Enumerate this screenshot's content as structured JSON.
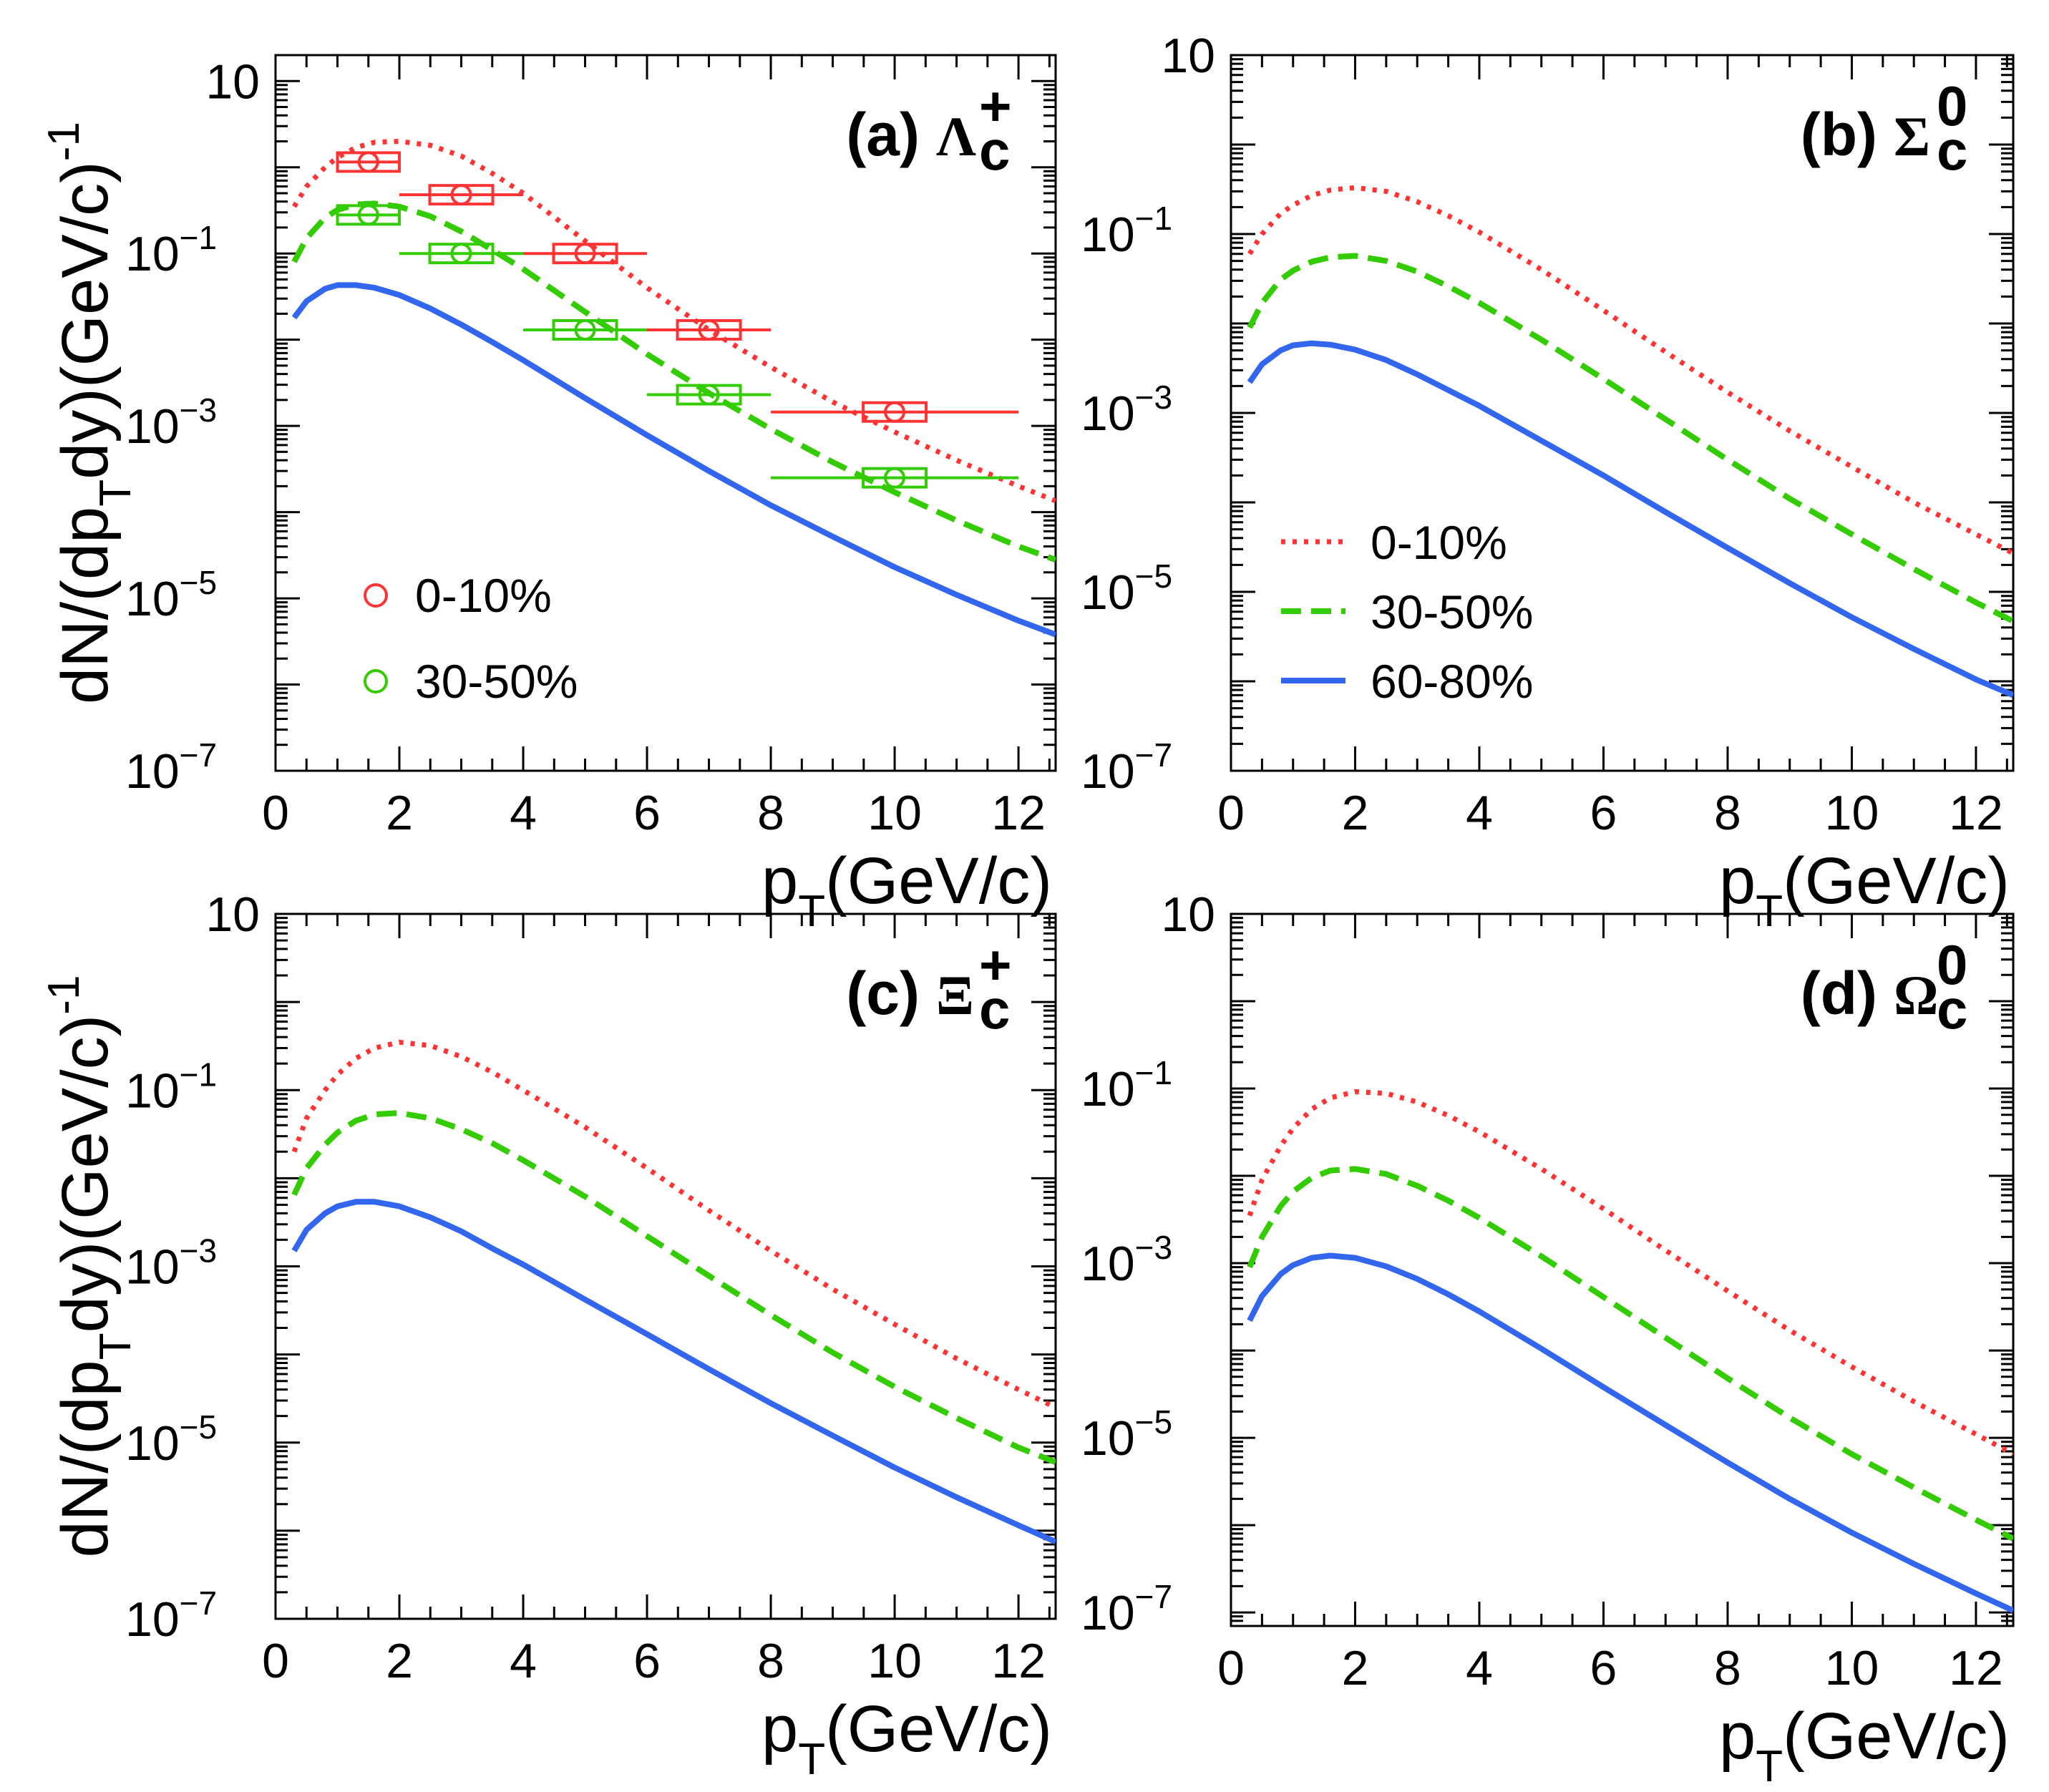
{
  "chart_data": [
    {
      "type": "line",
      "panel_label": "(a)",
      "particle": {
        "symbol": "Λ",
        "subscript": "c",
        "superscript": "+"
      },
      "xlabel": {
        "main": "p",
        "sub": "T",
        "rest": "(GeV/c)"
      },
      "ylabel": {
        "part1": "dN/(dp",
        "sub": "T",
        "part2": "dy)(GeV/c)",
        "sup": "-1"
      },
      "xlim": [
        0,
        12.6
      ],
      "ylim": [
        1e-07,
        20
      ],
      "yscale": "log",
      "xticks": [
        "0",
        "2",
        "4",
        "6",
        "8",
        "10",
        "12"
      ],
      "yticks": [
        {
          "value": 10,
          "label": "10",
          "exp": ""
        },
        {
          "value": 0.1,
          "label": "10",
          "exp": "−1"
        },
        {
          "value": 0.001,
          "label": "10",
          "exp": "−3"
        },
        {
          "value": 1e-05,
          "label": "10",
          "exp": "−5"
        },
        {
          "value": 1e-07,
          "label": "10",
          "exp": "−7"
        }
      ],
      "series": [
        {
          "name": "0-10%",
          "color": "#ff3333",
          "style": "dotted",
          "x": [
            0.3,
            0.5,
            0.8,
            1.0,
            1.3,
            1.6,
            2.0,
            2.5,
            3.0,
            3.5,
            4.0,
            5.0,
            6.0,
            7.0,
            8.0,
            9.0,
            10.0,
            11.0,
            12.0,
            12.6
          ],
          "y": [
            0.35,
            0.6,
            1.0,
            1.3,
            1.7,
            1.95,
            2.0,
            1.8,
            1.35,
            0.85,
            0.5,
            0.14,
            0.04,
            0.013,
            0.0048,
            0.0019,
            0.00085,
            0.0004,
            0.0002,
            0.000135
          ]
        },
        {
          "name": "30-50%",
          "color": "#33cc00",
          "style": "dashed",
          "x": [
            0.3,
            0.5,
            0.8,
            1.0,
            1.3,
            1.6,
            2.0,
            2.5,
            3.0,
            3.5,
            4.0,
            5.0,
            6.0,
            7.0,
            8.0,
            9.0,
            10.0,
            11.0,
            12.0,
            12.6
          ],
          "y": [
            0.08,
            0.15,
            0.26,
            0.32,
            0.37,
            0.38,
            0.35,
            0.27,
            0.18,
            0.11,
            0.066,
            0.021,
            0.0068,
            0.0024,
            0.00092,
            0.00038,
            0.00017,
            8e-05,
            4e-05,
            2.8e-05
          ]
        },
        {
          "name": "60-80%",
          "color": "#3366ee",
          "style": "solid",
          "x": [
            0.3,
            0.5,
            0.8,
            1.0,
            1.3,
            1.6,
            2.0,
            2.5,
            3.0,
            3.5,
            4.0,
            5.0,
            6.0,
            7.0,
            8.0,
            9.0,
            10.0,
            11.0,
            12.0,
            12.6
          ],
          "y": [
            0.018,
            0.028,
            0.039,
            0.043,
            0.043,
            0.04,
            0.033,
            0.023,
            0.015,
            0.0094,
            0.0058,
            0.0021,
            0.00078,
            0.0003,
            0.00012,
            5.2e-05,
            2.3e-05,
            1.1e-05,
            5.5e-06,
            3.8e-06
          ]
        }
      ],
      "points": [
        {
          "name": "0-10%",
          "color": "#ff3333",
          "x": [
            1.5,
            3.0,
            5.0,
            7.0,
            10.0
          ],
          "xerr": [
            0.5,
            1.0,
            1.0,
            1.0,
            2.0
          ],
          "y": [
            1.15,
            0.48,
            0.1,
            0.013,
            0.00145
          ]
        },
        {
          "name": "30-50%",
          "color": "#33cc00",
          "x": [
            1.5,
            3.0,
            5.0,
            7.0,
            10.0
          ],
          "xerr": [
            0.5,
            1.0,
            1.0,
            1.0,
            2.0
          ],
          "y": [
            0.28,
            0.1,
            0.013,
            0.0023,
            0.00025
          ]
        }
      ],
      "legend": {
        "position": "bottom-left",
        "entries": [
          "0-10%",
          "30-50%"
        ]
      }
    },
    {
      "type": "line",
      "panel_label": "(b)",
      "particle": {
        "symbol": "Σ",
        "subscript": "c",
        "superscript": "0"
      },
      "xlabel": {
        "main": "p",
        "sub": "T",
        "rest": "(GeV/c)"
      },
      "xlim": [
        0,
        12.6
      ],
      "ylim": [
        1e-07,
        10
      ],
      "yscale": "log",
      "xticks": [
        "0",
        "2",
        "4",
        "6",
        "8",
        "10",
        "12"
      ],
      "yticks": [
        {
          "value": 10,
          "label": "10",
          "exp": ""
        },
        {
          "value": 0.1,
          "label": "10",
          "exp": "−1"
        },
        {
          "value": 0.001,
          "label": "10",
          "exp": "−3"
        },
        {
          "value": 1e-05,
          "label": "10",
          "exp": "−5"
        },
        {
          "value": 1e-07,
          "label": "10",
          "exp": "−7"
        }
      ],
      "series": [
        {
          "name": "0-10%",
          "color": "#ff3333",
          "style": "dotted",
          "x": [
            0.3,
            0.5,
            0.8,
            1.0,
            1.3,
            1.6,
            2.0,
            2.5,
            3.0,
            3.5,
            4.0,
            5.0,
            6.0,
            7.0,
            8.0,
            9.0,
            10.0,
            11.0,
            12.0,
            12.6
          ],
          "y": [
            0.06,
            0.1,
            0.17,
            0.21,
            0.27,
            0.31,
            0.33,
            0.3,
            0.23,
            0.16,
            0.105,
            0.04,
            0.014,
            0.0048,
            0.0017,
            0.00063,
            0.00025,
            0.0001,
            4.4e-05,
            2.7e-05
          ]
        },
        {
          "name": "30-50%",
          "color": "#33cc00",
          "style": "dashed",
          "x": [
            0.3,
            0.5,
            0.8,
            1.0,
            1.3,
            1.6,
            2.0,
            2.5,
            3.0,
            3.5,
            4.0,
            5.0,
            6.0,
            7.0,
            8.0,
            9.0,
            10.0,
            11.0,
            12.0,
            12.6
          ],
          "y": [
            0.009,
            0.017,
            0.031,
            0.039,
            0.049,
            0.055,
            0.057,
            0.05,
            0.038,
            0.026,
            0.017,
            0.0066,
            0.0024,
            0.00085,
            0.0003,
            0.00011,
            4.4e-05,
            1.8e-05,
            7.6e-06,
            4.7e-06
          ]
        },
        {
          "name": "60-80%",
          "color": "#3366ee",
          "style": "solid",
          "x": [
            0.3,
            0.5,
            0.8,
            1.0,
            1.3,
            1.6,
            2.0,
            2.5,
            3.0,
            3.5,
            4.0,
            5.0,
            6.0,
            7.0,
            8.0,
            9.0,
            10.0,
            11.0,
            12.0,
            12.6
          ],
          "y": [
            0.0022,
            0.0035,
            0.005,
            0.0057,
            0.006,
            0.0058,
            0.0051,
            0.0039,
            0.0027,
            0.0018,
            0.0012,
            0.00049,
            0.0002,
            7.8e-05,
            3.1e-05,
            1.25e-05,
            5.2e-06,
            2.3e-06,
            1.05e-06,
            7e-07
          ]
        }
      ],
      "legend": {
        "position": "bottom-left",
        "entries": [
          "0-10%",
          "30-50%",
          "60-80%"
        ]
      }
    },
    {
      "type": "line",
      "panel_label": "(c)",
      "particle": {
        "symbol": "Ξ",
        "subscript": "c",
        "superscript": "+"
      },
      "xlabel": {
        "main": "p",
        "sub": "T",
        "rest": "(GeV/c)"
      },
      "ylabel": {
        "part1": "dN/(dp",
        "sub": "T",
        "part2": "dy)(GeV/c)",
        "sup": "-1"
      },
      "xlim": [
        0,
        12.6
      ],
      "ylim": [
        1e-07,
        10
      ],
      "yscale": "log",
      "xticks": [
        "0",
        "2",
        "4",
        "6",
        "8",
        "10",
        "12"
      ],
      "yticks": [
        {
          "value": 10,
          "label": "10",
          "exp": ""
        },
        {
          "value": 0.1,
          "label": "10",
          "exp": "−1"
        },
        {
          "value": 0.001,
          "label": "10",
          "exp": "−3"
        },
        {
          "value": 1e-05,
          "label": "10",
          "exp": "−5"
        },
        {
          "value": 1e-07,
          "label": "10",
          "exp": "−7"
        }
      ],
      "series": [
        {
          "name": "0-10%",
          "color": "#ff3333",
          "style": "dotted",
          "x": [
            0.3,
            0.5,
            0.8,
            1.0,
            1.3,
            1.6,
            2.0,
            2.5,
            3.0,
            3.5,
            4.0,
            5.0,
            6.0,
            7.0,
            8.0,
            9.0,
            10.0,
            11.0,
            12.0,
            12.6
          ],
          "y": [
            0.02,
            0.048,
            0.1,
            0.15,
            0.23,
            0.3,
            0.35,
            0.32,
            0.24,
            0.16,
            0.1,
            0.038,
            0.013,
            0.0043,
            0.0015,
            0.00055,
            0.00022,
            9e-05,
            4e-05,
            2.5e-05
          ]
        },
        {
          "name": "30-50%",
          "color": "#33cc00",
          "style": "dashed",
          "x": [
            0.3,
            0.5,
            0.8,
            1.0,
            1.3,
            1.6,
            2.0,
            2.5,
            3.0,
            3.5,
            4.0,
            5.0,
            6.0,
            7.0,
            8.0,
            9.0,
            10.0,
            11.0,
            12.0,
            12.6
          ],
          "y": [
            0.0065,
            0.013,
            0.024,
            0.033,
            0.045,
            0.053,
            0.055,
            0.048,
            0.036,
            0.025,
            0.016,
            0.0062,
            0.0022,
            0.00078,
            0.00028,
            0.000105,
            4.3e-05,
            1.9e-05,
            8.8e-06,
            6e-06
          ]
        },
        {
          "name": "60-80%",
          "color": "#3366ee",
          "style": "solid",
          "x": [
            0.3,
            0.5,
            0.8,
            1.0,
            1.3,
            1.6,
            2.0,
            2.5,
            3.0,
            3.5,
            4.0,
            5.0,
            6.0,
            7.0,
            8.0,
            9.0,
            10.0,
            11.0,
            12.0,
            12.6
          ],
          "y": [
            0.0015,
            0.0026,
            0.004,
            0.0048,
            0.0054,
            0.0054,
            0.0048,
            0.0036,
            0.0025,
            0.0016,
            0.00105,
            0.00042,
            0.00017,
            6.8e-05,
            2.8e-05,
            1.2e-05,
            5.2e-06,
            2.4e-06,
            1.15e-06,
            7.5e-07
          ]
        }
      ]
    },
    {
      "type": "line",
      "panel_label": "(d)",
      "particle": {
        "symbol": "Ω",
        "subscript": "c",
        "superscript": "0"
      },
      "xlabel": {
        "main": "p",
        "sub": "T",
        "rest": "(GeV/c)"
      },
      "xlim": [
        0,
        12.6
      ],
      "ylim": [
        7e-08,
        10
      ],
      "yscale": "log",
      "xticks": [
        "0",
        "2",
        "4",
        "6",
        "8",
        "10",
        "12"
      ],
      "yticks": [
        {
          "value": 10,
          "label": "10",
          "exp": ""
        },
        {
          "value": 0.1,
          "label": "10",
          "exp": "−1"
        },
        {
          "value": 0.001,
          "label": "10",
          "exp": "−3"
        },
        {
          "value": 1e-05,
          "label": "10",
          "exp": "−5"
        },
        {
          "value": 1e-07,
          "label": "10",
          "exp": "−7"
        }
      ],
      "series": [
        {
          "name": "0-10%",
          "color": "#ff3333",
          "style": "dotted",
          "x": [
            0.3,
            0.5,
            0.8,
            1.0,
            1.3,
            1.6,
            2.0,
            2.5,
            3.0,
            3.5,
            4.0,
            5.0,
            6.0,
            7.0,
            8.0,
            9.0,
            10.0,
            11.0,
            12.0,
            12.6
          ],
          "y": [
            0.0035,
            0.009,
            0.022,
            0.035,
            0.058,
            0.078,
            0.092,
            0.088,
            0.07,
            0.049,
            0.032,
            0.012,
            0.0042,
            0.0014,
            0.00048,
            0.00017,
            6.5e-05,
            2.6e-05,
            1.1e-05,
            6.5e-06
          ]
        },
        {
          "name": "30-50%",
          "color": "#33cc00",
          "style": "dashed",
          "x": [
            0.3,
            0.5,
            0.8,
            1.0,
            1.3,
            1.6,
            2.0,
            2.5,
            3.0,
            3.5,
            4.0,
            5.0,
            6.0,
            7.0,
            8.0,
            9.0,
            10.0,
            11.0,
            12.0,
            12.6
          ],
          "y": [
            0.0009,
            0.002,
            0.0045,
            0.0066,
            0.0095,
            0.0115,
            0.012,
            0.0105,
            0.0077,
            0.0052,
            0.0033,
            0.0012,
            0.00041,
            0.00014,
            4.8e-05,
            1.7e-05,
            6.5e-06,
            2.7e-06,
            1.15e-06,
            7e-07
          ]
        },
        {
          "name": "60-80%",
          "color": "#3366ee",
          "style": "solid",
          "x": [
            0.3,
            0.5,
            0.8,
            1.0,
            1.3,
            1.6,
            2.0,
            2.5,
            3.0,
            3.5,
            4.0,
            5.0,
            6.0,
            7.0,
            8.0,
            9.0,
            10.0,
            11.0,
            12.0,
            12.6
          ],
          "y": [
            0.00022,
            0.00042,
            0.00075,
            0.00095,
            0.00115,
            0.00122,
            0.00115,
            0.00092,
            0.00066,
            0.00044,
            0.00028,
            0.000105,
            3.8e-05,
            1.4e-05,
            5.2e-06,
            2e-06,
            8.2e-07,
            3.6e-07,
            1.65e-07,
            1.05e-07
          ]
        }
      ]
    }
  ]
}
